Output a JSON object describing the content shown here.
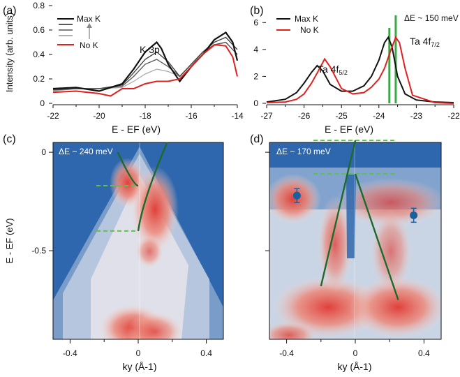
{
  "chart_data": [
    {
      "panel": "(a)",
      "type": "line",
      "xlabel": "E - EF (eV)",
      "ylabel": "Intensity (arb. units)",
      "xlim": [
        -22,
        -14
      ],
      "ylim": [
        0,
        0.8
      ],
      "x_ticks": [
        "-22",
        "-20",
        "-18",
        "-16",
        "-14"
      ],
      "y_ticks": [
        "0",
        "0.2",
        "0.4",
        "0.6",
        "0.8"
      ],
      "annotation": "K 3p",
      "legend": {
        "top": "Max K",
        "bottom": "No K",
        "position": "top-left"
      },
      "colors": {
        "max": "#111111",
        "mid": "#555555",
        "light": "#aaaaaa",
        "none": "#e0201e"
      },
      "series": [
        {
          "name": "Max K",
          "x": [
            -22,
            -21,
            -20,
            -19.5,
            -19,
            -18.5,
            -18,
            -17.5,
            -17.3,
            -17,
            -16.5,
            -16,
            -15.5,
            -15,
            -14.5,
            -14.2,
            -14
          ],
          "y": [
            0.12,
            0.13,
            0.1,
            0.13,
            0.16,
            0.28,
            0.42,
            0.5,
            0.45,
            0.32,
            0.18,
            0.3,
            0.4,
            0.52,
            0.58,
            0.5,
            0.35
          ]
        },
        {
          "name": "",
          "x": [
            -22,
            -21,
            -20,
            -19,
            -18.5,
            -18,
            -17.5,
            -17,
            -16.5,
            -16,
            -15.5,
            -15,
            -14.5,
            -14
          ],
          "y": [
            0.11,
            0.12,
            0.12,
            0.15,
            0.25,
            0.36,
            0.42,
            0.34,
            0.22,
            0.32,
            0.42,
            0.5,
            0.54,
            0.44
          ]
        },
        {
          "name": "",
          "x": [
            -22,
            -21,
            -20,
            -19,
            -18.5,
            -18,
            -17.5,
            -17,
            -16.5,
            -16,
            -15.5,
            -15,
            -14.5,
            -14
          ],
          "y": [
            0.11,
            0.12,
            0.12,
            0.14,
            0.22,
            0.32,
            0.36,
            0.3,
            0.22,
            0.32,
            0.42,
            0.48,
            0.5,
            0.4
          ]
        },
        {
          "name": "",
          "x": [
            -22,
            -21,
            -20,
            -19,
            -18.5,
            -18,
            -17.5,
            -17,
            -16.5,
            -16,
            -15.5,
            -15,
            -14.5,
            -14
          ],
          "y": [
            0.1,
            0.12,
            0.12,
            0.13,
            0.18,
            0.24,
            0.28,
            0.26,
            0.22,
            0.32,
            0.4,
            0.47,
            0.5,
            0.4
          ]
        },
        {
          "name": "No K",
          "x": [
            -22,
            -21,
            -20,
            -19.5,
            -19,
            -18.5,
            -18,
            -17.5,
            -17,
            -16.5,
            -16,
            -15.5,
            -15,
            -14.5,
            -14.2,
            -14
          ],
          "y": [
            0.09,
            0.1,
            0.08,
            0.06,
            0.12,
            0.12,
            0.16,
            0.18,
            0.18,
            0.2,
            0.3,
            0.4,
            0.48,
            0.47,
            0.38,
            0.22
          ]
        }
      ]
    },
    {
      "panel": "(b)",
      "type": "line",
      "xlabel": "E - EF (eV)",
      "ylabel": "",
      "xlim": [
        -27,
        -22
      ],
      "ylim": [
        0,
        7
      ],
      "x_ticks": [
        "-27",
        "-26",
        "-25",
        "-24",
        "-23",
        "-22"
      ],
      "y_ticks": [
        "0",
        "2",
        "4",
        "6"
      ],
      "legend": {
        "entries": [
          "Max K",
          "No K"
        ],
        "position": "top-left"
      },
      "annotations": {
        "peak1": "Ta 4f",
        "peak1_sub": "5/2",
        "peak2": "Ta 4f",
        "peak2_sub": "7/2",
        "shift": "ΔE ~ 150 meV"
      },
      "colors": {
        "max": "#111111",
        "none": "#e0201e",
        "marker": "#3aa845"
      },
      "marker_x": [
        -23.72,
        -23.55
      ],
      "series": [
        {
          "name": "Max K",
          "x": [
            -27,
            -26.5,
            -26.2,
            -26,
            -25.8,
            -25.65,
            -25.5,
            -25.3,
            -25,
            -24.7,
            -24.4,
            -24.2,
            -24,
            -23.85,
            -23.75,
            -23.65,
            -23.5,
            -23.3,
            -23,
            -22.5,
            -22
          ],
          "y": [
            0.1,
            0.3,
            0.8,
            1.5,
            2.3,
            2.8,
            2.4,
            1.4,
            0.9,
            0.9,
            1.3,
            2.0,
            3.2,
            4.5,
            4.9,
            4.2,
            2.0,
            0.7,
            0.25,
            0.1,
            0.05
          ]
        },
        {
          "name": "No K",
          "x": [
            -27,
            -26.5,
            -26.2,
            -26,
            -25.8,
            -25.6,
            -25.45,
            -25.3,
            -25,
            -24.7,
            -24.4,
            -24.2,
            -24,
            -23.85,
            -23.7,
            -23.55,
            -23.45,
            -23.3,
            -23.1,
            -22.5,
            -22
          ],
          "y": [
            0.05,
            0.1,
            0.3,
            0.7,
            1.5,
            2.5,
            3.3,
            2.7,
            1.1,
            0.7,
            0.8,
            1.2,
            1.8,
            2.6,
            3.8,
            4.9,
            4.5,
            2.6,
            0.6,
            0.05,
            0.0
          ]
        }
      ]
    },
    {
      "panel": "(c)",
      "type": "heatmap",
      "xlabel": "ky (Å-1)",
      "ylabel": "E - EF (eV)",
      "xlim": [
        -0.5,
        0.5
      ],
      "ylim": [
        -0.95,
        0.05
      ],
      "x_ticks": [
        "-0.4",
        "0",
        "0.4"
      ],
      "y_ticks": [
        "0",
        "-0.5"
      ],
      "annotation": "ΔE ~ 240 meV",
      "dashed_levels": [
        -0.17,
        -0.4
      ],
      "band_fit": {
        "left": {
          "x": [
            -0.12,
            0.0
          ],
          "y": [
            0.0,
            -0.17
          ]
        },
        "right": {
          "x": [
            0.0,
            0.17
          ],
          "y": [
            -0.4,
            0.05
          ]
        }
      },
      "colors": {
        "background": "#2e67ad",
        "intensity": "#e63a2f",
        "fit": "#1d6a2b",
        "dash": "#5fc04a"
      }
    },
    {
      "panel": "(d)",
      "type": "heatmap",
      "xlabel": "ky (Å-1)",
      "ylabel": "",
      "xlim": [
        -0.5,
        0.5
      ],
      "ylim": [
        -0.95,
        0.05
      ],
      "x_ticks": [
        "-0.4",
        "0",
        "0.4"
      ],
      "y_ticks": [],
      "annotation": "ΔE ~ 170 meV",
      "dashed_levels": [
        0.06,
        -0.11
      ],
      "band_fit": {
        "left": {
          "x": [
            -0.2,
            0.0
          ],
          "y": [
            -0.68,
            0.06
          ]
        },
        "right": {
          "x": [
            0.0,
            0.25
          ],
          "y": [
            -0.11,
            -0.75
          ]
        }
      },
      "markers": [
        {
          "x": -0.34,
          "y": -0.22
        },
        {
          "x": 0.34,
          "y": -0.32
        }
      ],
      "colors": {
        "background": "#2e67ad",
        "intensity": "#e63a2f",
        "fit": "#1d6a2b",
        "dash": "#5fc04a",
        "marker": "#19609f"
      }
    }
  ]
}
